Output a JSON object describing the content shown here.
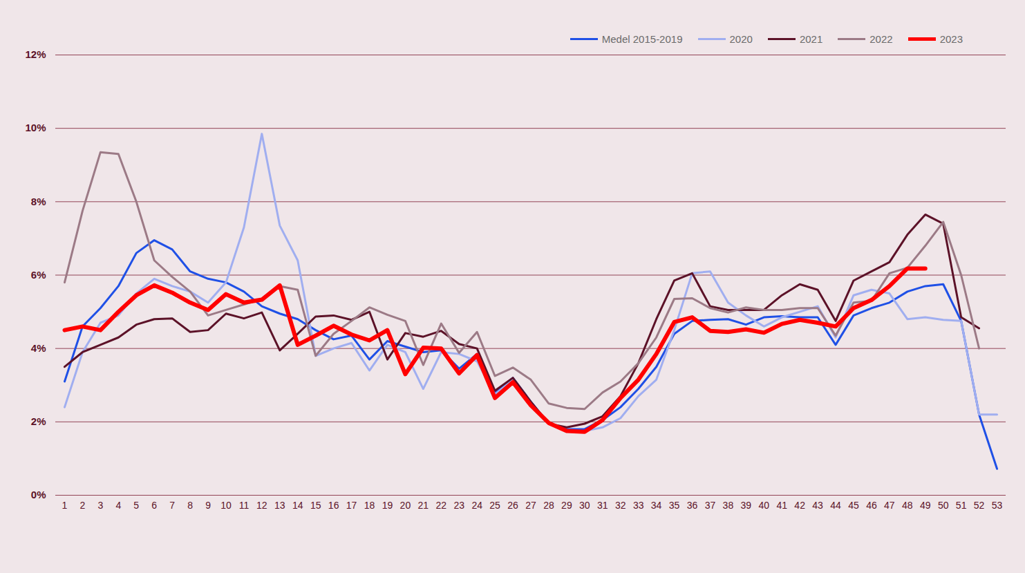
{
  "chart_data": {
    "type": "line",
    "categories": [
      "1",
      "2",
      "3",
      "4",
      "5",
      "6",
      "7",
      "8",
      "9",
      "10",
      "11",
      "12",
      "13",
      "14",
      "15",
      "16",
      "17",
      "18",
      "19",
      "20",
      "21",
      "22",
      "23",
      "24",
      "25",
      "26",
      "27",
      "28",
      "29",
      "30",
      "31",
      "32",
      "33",
      "34",
      "35",
      "36",
      "37",
      "38",
      "39",
      "40",
      "41",
      "42",
      "43",
      "44",
      "45",
      "46",
      "47",
      "48",
      "49",
      "50",
      "51",
      "52",
      "53"
    ],
    "series": [
      {
        "name": "Medel 2015-2019",
        "color": "#1f50e6",
        "values": [
          3.1,
          4.6,
          5.1,
          5.7,
          6.6,
          6.95,
          6.7,
          6.1,
          5.9,
          5.8,
          5.55,
          5.15,
          4.95,
          4.8,
          4.5,
          4.25,
          4.35,
          3.7,
          4.2,
          4.05,
          3.9,
          3.95,
          3.45,
          3.85,
          2.8,
          3.2,
          2.55,
          1.95,
          1.8,
          1.8,
          2.05,
          2.4,
          2.9,
          3.5,
          4.4,
          4.75,
          4.78,
          4.8,
          4.65,
          4.85,
          4.88,
          4.85,
          4.85,
          4.1,
          4.9,
          5.1,
          5.25,
          5.55,
          5.7,
          5.75,
          4.75,
          2.2,
          0.72
        ]
      },
      {
        "name": "2020",
        "color": "#a0aef0",
        "values": [
          2.4,
          3.9,
          4.7,
          4.9,
          5.5,
          5.9,
          5.7,
          5.55,
          5.25,
          5.8,
          7.3,
          9.85,
          7.35,
          6.4,
          3.8,
          4.0,
          4.15,
          3.4,
          4.1,
          3.9,
          2.9,
          3.9,
          3.85,
          3.65,
          2.75,
          3.15,
          2.5,
          1.95,
          1.75,
          1.75,
          1.85,
          2.1,
          2.7,
          3.15,
          4.5,
          6.05,
          6.1,
          5.25,
          4.9,
          4.6,
          4.85,
          5.0,
          5.15,
          4.3,
          5.45,
          5.6,
          5.5,
          4.8,
          4.85,
          4.78,
          4.75,
          2.2,
          2.2
        ]
      },
      {
        "name": "2021",
        "color": "#5c1228",
        "values": [
          3.5,
          3.9,
          4.1,
          4.3,
          4.65,
          4.8,
          4.82,
          4.45,
          4.5,
          4.95,
          4.82,
          4.98,
          3.95,
          4.4,
          4.87,
          4.9,
          4.78,
          5.0,
          3.7,
          4.42,
          4.32,
          4.48,
          4.12,
          4.0,
          2.85,
          3.2,
          2.55,
          1.95,
          1.85,
          1.95,
          2.15,
          2.7,
          3.6,
          4.8,
          5.85,
          6.05,
          5.15,
          5.05,
          5.05,
          5.05,
          5.45,
          5.75,
          5.6,
          4.75,
          5.85,
          6.1,
          6.35,
          7.1,
          7.65,
          7.4,
          4.85,
          4.55,
          null
        ]
      },
      {
        "name": "2022",
        "color": "#9c7a86",
        "values": [
          5.8,
          7.75,
          9.35,
          9.3,
          8.0,
          6.4,
          5.95,
          5.55,
          4.9,
          5.05,
          5.2,
          5.35,
          5.7,
          5.6,
          3.8,
          4.4,
          4.75,
          5.12,
          4.92,
          4.75,
          3.55,
          4.68,
          3.88,
          4.45,
          3.25,
          3.48,
          3.15,
          2.5,
          2.38,
          2.35,
          2.8,
          3.1,
          3.6,
          4.3,
          5.35,
          5.37,
          5.1,
          4.98,
          5.12,
          5.05,
          5.05,
          5.1,
          5.1,
          4.35,
          5.25,
          5.3,
          6.05,
          6.2,
          6.8,
          7.45,
          6.0,
          4.0,
          null
        ]
      },
      {
        "name": "2023",
        "color": "#ff0000",
        "values": [
          4.5,
          4.6,
          4.5,
          5.0,
          5.45,
          5.72,
          5.52,
          5.25,
          5.05,
          5.48,
          5.25,
          5.33,
          5.72,
          4.1,
          4.35,
          4.62,
          4.38,
          4.22,
          4.5,
          3.3,
          4.02,
          4.0,
          3.32,
          3.82,
          2.65,
          3.08,
          2.45,
          1.97,
          1.75,
          1.73,
          2.05,
          2.65,
          3.15,
          3.85,
          4.72,
          4.85,
          4.48,
          4.45,
          4.52,
          4.43,
          4.67,
          4.78,
          4.7,
          4.6,
          5.1,
          5.32,
          5.7,
          6.18,
          6.18,
          null,
          null,
          null,
          null
        ]
      }
    ],
    "ylim": [
      0,
      12
    ],
    "yticks": [
      {
        "value": 0,
        "label": "0%"
      },
      {
        "value": 2,
        "label": "2%"
      },
      {
        "value": 4,
        "label": "4%"
      },
      {
        "value": 6,
        "label": "6%"
      },
      {
        "value": 8,
        "label": "8%"
      },
      {
        "value": 10,
        "label": "10%"
      },
      {
        "value": 12,
        "label": "12%"
      }
    ],
    "grid": true,
    "legend": "top-right"
  }
}
